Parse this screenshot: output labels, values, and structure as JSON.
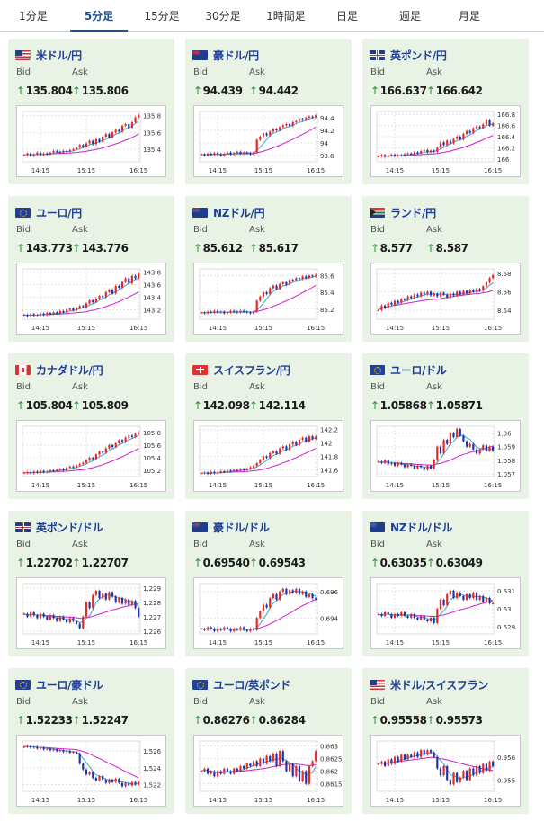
{
  "tabs": [
    {
      "label": "1分足",
      "active": false
    },
    {
      "label": "5分足",
      "active": true
    },
    {
      "label": "15分足",
      "active": false
    },
    {
      "label": "30分足",
      "active": false
    },
    {
      "label": "1時間足",
      "active": false
    },
    {
      "label": "日足",
      "active": false
    },
    {
      "label": "週足",
      "active": false
    },
    {
      "label": "月足",
      "active": false
    }
  ],
  "labels": {
    "bid": "Bid",
    "ask": "Ask",
    "arrow": "↑"
  },
  "colors": {
    "up": "#e22a2a",
    "down": "#2233aa",
    "ma_fast": "#3aa7c9",
    "ma_slow": "#d01ed0",
    "accent": "#1b4f8f",
    "card_bg": "#e9f3e5"
  },
  "pairs": [
    {
      "name": "米ドル/円",
      "flag": "us",
      "bid": "135.804",
      "ask": "135.806",
      "chart_data": {
        "type": "line",
        "x_ticks": [
          "14:15",
          "15:15",
          "16:15"
        ],
        "y_ticks": [
          "135.8",
          "135.6",
          "135.4"
        ],
        "ylim": [
          135.25,
          135.85
        ],
        "close": [
          135.33,
          135.35,
          135.32,
          135.34,
          135.36,
          135.33,
          135.35,
          135.34,
          135.36,
          135.38,
          135.37,
          135.36,
          135.38,
          135.37,
          135.39,
          135.4,
          135.42,
          135.45,
          135.43,
          135.47,
          135.5,
          135.46,
          135.52,
          135.49,
          135.55,
          135.58,
          135.54,
          135.6,
          135.63,
          135.61,
          135.68,
          135.7,
          135.66,
          135.72,
          135.78,
          135.81
        ]
      }
    },
    {
      "name": "豪ドル/円",
      "flag": "au",
      "bid": "94.439",
      "ask": "94.442",
      "chart_data": {
        "type": "line",
        "x_ticks": [
          "14:15",
          "15:15",
          "16:15"
        ],
        "y_ticks": [
          "94.4",
          "94.2",
          "94",
          "93.8"
        ],
        "ylim": [
          93.7,
          94.5
        ],
        "close": [
          93.82,
          93.8,
          93.83,
          93.81,
          93.84,
          93.82,
          93.8,
          93.83,
          93.85,
          93.82,
          93.84,
          93.86,
          93.83,
          93.85,
          93.84,
          93.82,
          93.85,
          94.05,
          94.1,
          94.15,
          94.12,
          94.18,
          94.22,
          94.2,
          94.25,
          94.28,
          94.3,
          94.27,
          94.33,
          94.35,
          94.38,
          94.36,
          94.4,
          94.42,
          94.41,
          94.44
        ]
      }
    },
    {
      "name": "英ポンド/円",
      "flag": "gb",
      "bid": "166.637",
      "ask": "166.642",
      "chart_data": {
        "type": "line",
        "x_ticks": [
          "14:15",
          "15:15",
          "16:15"
        ],
        "y_ticks": [
          "166.8",
          "166.6",
          "166.4",
          "166.2",
          "166"
        ],
        "ylim": [
          165.95,
          166.85
        ],
        "close": [
          166.05,
          166.07,
          166.04,
          166.06,
          166.08,
          166.05,
          166.07,
          166.06,
          166.09,
          166.1,
          166.08,
          166.12,
          166.1,
          166.14,
          166.16,
          166.12,
          166.15,
          166.13,
          166.2,
          166.3,
          166.25,
          166.33,
          166.28,
          166.36,
          166.4,
          166.35,
          166.45,
          166.5,
          166.47,
          166.55,
          166.58,
          166.55,
          166.62,
          166.7,
          166.6,
          166.64
        ]
      }
    },
    {
      "name": "ユーロ/円",
      "flag": "eu",
      "bid": "143.773",
      "ask": "143.776",
      "chart_data": {
        "type": "line",
        "x_ticks": [
          "14:15",
          "15:15",
          "16:15"
        ],
        "y_ticks": [
          "143.8",
          "143.6",
          "143.4",
          "143.2"
        ],
        "ylim": [
          143.05,
          143.85
        ],
        "close": [
          143.12,
          143.1,
          143.13,
          143.11,
          143.12,
          143.14,
          143.12,
          143.15,
          143.13,
          143.16,
          143.14,
          143.18,
          143.16,
          143.2,
          143.22,
          143.19,
          143.23,
          143.26,
          143.24,
          143.3,
          143.35,
          143.32,
          143.38,
          143.42,
          143.4,
          143.48,
          143.52,
          143.46,
          143.58,
          143.55,
          143.64,
          143.7,
          143.62,
          143.74,
          143.7,
          143.77
        ]
      }
    },
    {
      "name": "NZドル/円",
      "flag": "nz",
      "bid": "85.612",
      "ask": "85.617",
      "chart_data": {
        "type": "line",
        "x_ticks": [
          "14:15",
          "15:15",
          "16:15"
        ],
        "y_ticks": [
          "85.6",
          "85.4",
          "85.2"
        ],
        "ylim": [
          85.08,
          85.68
        ],
        "close": [
          85.16,
          85.15,
          85.17,
          85.16,
          85.18,
          85.16,
          85.17,
          85.15,
          85.16,
          85.18,
          85.17,
          85.16,
          85.18,
          85.17,
          85.16,
          85.15,
          85.17,
          85.3,
          85.35,
          85.4,
          85.38,
          85.45,
          85.48,
          85.44,
          85.5,
          85.52,
          85.49,
          85.55,
          85.54,
          85.57,
          85.56,
          85.59,
          85.57,
          85.6,
          85.59,
          85.61
        ]
      }
    },
    {
      "name": "ランド/円",
      "flag": "za",
      "bid": "8.577",
      "ask": "8.587",
      "chart_data": {
        "type": "line",
        "x_ticks": [
          "14:15",
          "15:15",
          "16:15"
        ],
        "y_ticks": [
          "8.58",
          "8.56",
          "8.54"
        ],
        "ylim": [
          8.53,
          8.585
        ],
        "close": [
          8.54,
          8.545,
          8.542,
          8.548,
          8.546,
          8.55,
          8.548,
          8.552,
          8.551,
          8.555,
          8.553,
          8.557,
          8.555,
          8.559,
          8.557,
          8.56,
          8.556,
          8.558,
          8.555,
          8.559,
          8.557,
          8.554,
          8.558,
          8.556,
          8.56,
          8.557,
          8.561,
          8.558,
          8.562,
          8.56,
          8.563,
          8.561,
          8.566,
          8.57,
          8.575,
          8.578
        ]
      }
    },
    {
      "name": "カナダドル/円",
      "flag": "ca",
      "bid": "105.804",
      "ask": "105.809",
      "chart_data": {
        "type": "line",
        "x_ticks": [
          "14:15",
          "15:15",
          "16:15"
        ],
        "y_ticks": [
          "105.8",
          "105.6",
          "105.4",
          "105.2"
        ],
        "ylim": [
          105.1,
          105.9
        ],
        "close": [
          105.16,
          105.17,
          105.15,
          105.18,
          105.16,
          105.19,
          105.17,
          105.18,
          105.2,
          105.19,
          105.21,
          105.22,
          105.2,
          105.24,
          105.26,
          105.25,
          105.28,
          105.3,
          105.32,
          105.36,
          105.4,
          105.38,
          105.45,
          105.5,
          105.48,
          105.55,
          105.6,
          105.57,
          105.63,
          105.68,
          105.65,
          105.72,
          105.75,
          105.73,
          105.78,
          105.8
        ]
      }
    },
    {
      "name": "スイスフラン/円",
      "flag": "ch",
      "bid": "142.098",
      "ask": "142.114",
      "chart_data": {
        "type": "line",
        "x_ticks": [
          "14:15",
          "15:15",
          "16:15"
        ],
        "y_ticks": [
          "142.2",
          "142",
          "141.8",
          "141.6"
        ],
        "ylim": [
          141.5,
          142.25
        ],
        "close": [
          141.55,
          141.56,
          141.54,
          141.57,
          141.55,
          141.56,
          141.58,
          141.57,
          141.59,
          141.58,
          141.6,
          141.59,
          141.61,
          141.6,
          141.62,
          141.64,
          141.66,
          141.7,
          141.75,
          141.8,
          141.78,
          141.85,
          141.88,
          141.84,
          141.92,
          141.95,
          141.9,
          141.98,
          142.02,
          141.97,
          142.05,
          142.08,
          142.02,
          142.1,
          142.06,
          142.1
        ]
      }
    },
    {
      "name": "ユーロ/ドル",
      "flag": "eu",
      "bid": "1.05868",
      "ask": "1.05871",
      "chart_data": {
        "type": "line",
        "x_ticks": [
          "14:15",
          "15:15",
          "16:15"
        ],
        "y_ticks": [
          "1.06",
          "1.059",
          "1.058",
          "1.057"
        ],
        "ylim": [
          1.0568,
          1.0605
        ],
        "close": [
          1.0579,
          1.0578,
          1.058,
          1.0577,
          1.0578,
          1.0576,
          1.0578,
          1.0577,
          1.0575,
          1.0577,
          1.0576,
          1.0574,
          1.0576,
          1.0575,
          1.0573,
          1.0576,
          1.0574,
          1.058,
          1.059,
          1.0585,
          1.0595,
          1.0592,
          1.06,
          1.0597,
          1.0603,
          1.0598,
          1.0594,
          1.059,
          1.0592,
          1.0588,
          1.0585,
          1.0588,
          1.0591,
          1.0587,
          1.059,
          1.0587
        ]
      }
    },
    {
      "name": "英ポンド/ドル",
      "flag": "gb",
      "bid": "1.22702",
      "ask": "1.22707",
      "chart_data": {
        "type": "line",
        "x_ticks": [
          "14:15",
          "15:15",
          "16:15"
        ],
        "y_ticks": [
          "1.229",
          "1.228",
          "1.227",
          "1.226"
        ],
        "ylim": [
          1.2258,
          1.2293
        ],
        "close": [
          1.2272,
          1.227,
          1.2273,
          1.2271,
          1.2269,
          1.2272,
          1.227,
          1.2268,
          1.2271,
          1.2269,
          1.2267,
          1.227,
          1.2268,
          1.2266,
          1.2269,
          1.2267,
          1.2265,
          1.2262,
          1.227,
          1.228,
          1.2276,
          1.2285,
          1.2288,
          1.2283,
          1.2286,
          1.2282,
          1.2287,
          1.2284,
          1.228,
          1.2283,
          1.2279,
          1.2282,
          1.2278,
          1.2281,
          1.2276,
          1.227
        ]
      }
    },
    {
      "name": "豪ドル/ドル",
      "flag": "au",
      "bid": "0.69540",
      "ask": "0.69543",
      "chart_data": {
        "type": "line",
        "x_ticks": [
          "14:15",
          "15:15",
          "16:15"
        ],
        "y_ticks": [
          "0.696",
          "0.694"
        ],
        "ylim": [
          0.6928,
          0.6966
        ],
        "close": [
          0.6932,
          0.6931,
          0.6933,
          0.6932,
          0.693,
          0.6932,
          0.6931,
          0.6933,
          0.6932,
          0.693,
          0.6932,
          0.6931,
          0.6933,
          0.6931,
          0.693,
          0.6932,
          0.6931,
          0.694,
          0.6945,
          0.695,
          0.6948,
          0.6955,
          0.6958,
          0.6954,
          0.696,
          0.6962,
          0.6958,
          0.6961,
          0.6959,
          0.6962,
          0.6958,
          0.696,
          0.6956,
          0.6958,
          0.6955,
          0.6954
        ]
      }
    },
    {
      "name": "NZドル/ドル",
      "flag": "nz",
      "bid": "0.63035",
      "ask": "0.63049",
      "chart_data": {
        "type": "line",
        "x_ticks": [
          "14:15",
          "15:15",
          "16:15"
        ],
        "y_ticks": [
          "0.631",
          "0.63",
          "0.629"
        ],
        "ylim": [
          0.6286,
          0.6314
        ],
        "close": [
          0.6297,
          0.6296,
          0.6298,
          0.6297,
          0.6295,
          0.6297,
          0.6296,
          0.6298,
          0.6296,
          0.6295,
          0.6297,
          0.6295,
          0.6294,
          0.6296,
          0.6294,
          0.6293,
          0.6295,
          0.6292,
          0.63,
          0.6305,
          0.6302,
          0.6308,
          0.631,
          0.6306,
          0.6309,
          0.6307,
          0.6305,
          0.6308,
          0.6306,
          0.6309,
          0.6305,
          0.6307,
          0.6304,
          0.6306,
          0.6303,
          0.6303
        ]
      }
    },
    {
      "name": "ユーロ/豪ドル",
      "flag": "eu",
      "bid": "1.52233",
      "ask": "1.52247",
      "chart_data": {
        "type": "line",
        "x_ticks": [
          "14:15",
          "15:15",
          "16:15"
        ],
        "y_ticks": [
          "1.526",
          "1.524",
          "1.522"
        ],
        "ylim": [
          1.5212,
          1.5272
        ],
        "close": [
          1.5265,
          1.5266,
          1.5264,
          1.5265,
          1.5263,
          1.5264,
          1.5262,
          1.5263,
          1.5261,
          1.5262,
          1.526,
          1.5261,
          1.5259,
          1.526,
          1.5258,
          1.5259,
          1.5257,
          1.5245,
          1.5238,
          1.5232,
          1.5235,
          1.5228,
          1.5225,
          1.523,
          1.5226,
          1.5222,
          1.5226,
          1.5223,
          1.5227,
          1.5222,
          1.5218,
          1.5222,
          1.5219,
          1.5223,
          1.522,
          1.5223
        ]
      }
    },
    {
      "name": "ユーロ/英ポンド",
      "flag": "eu",
      "bid": "0.86276",
      "ask": "0.86284",
      "chart_data": {
        "type": "line",
        "x_ticks": [
          "14:15",
          "15:15",
          "16:15"
        ],
        "y_ticks": [
          "0.863",
          "0.8625",
          "0.862",
          "0.8615"
        ],
        "ylim": [
          0.8612,
          0.8632
        ],
        "close": [
          0.862,
          0.8621,
          0.8619,
          0.862,
          0.8618,
          0.862,
          0.8619,
          0.8621,
          0.862,
          0.8619,
          0.8621,
          0.862,
          0.8622,
          0.8621,
          0.8623,
          0.8622,
          0.8624,
          0.8622,
          0.8625,
          0.8623,
          0.8626,
          0.8624,
          0.8627,
          0.8622,
          0.8628,
          0.8624,
          0.862,
          0.8623,
          0.8618,
          0.8622,
          0.8616,
          0.862,
          0.8615,
          0.8622,
          0.8624,
          0.8628
        ]
      }
    },
    {
      "name": "米ドル/スイスフラン",
      "flag": "us",
      "bid": "0.95558",
      "ask": "0.95573",
      "chart_data": {
        "type": "line",
        "x_ticks": [
          "14:15",
          "15:15",
          "16:15"
        ],
        "y_ticks": [
          "0.956",
          "0.955"
        ],
        "ylim": [
          0.9545,
          0.9567
        ],
        "close": [
          0.9557,
          0.9558,
          0.9556,
          0.9559,
          0.9557,
          0.956,
          0.9558,
          0.9561,
          0.9559,
          0.9561,
          0.956,
          0.9562,
          0.956,
          0.9563,
          0.9561,
          0.9563,
          0.9562,
          0.956,
          0.9555,
          0.9552,
          0.9556,
          0.955,
          0.9548,
          0.9553,
          0.9549,
          0.9551,
          0.9554,
          0.955,
          0.9555,
          0.9552,
          0.9556,
          0.9553,
          0.9557,
          0.9554,
          0.9558,
          0.9556
        ]
      }
    }
  ]
}
